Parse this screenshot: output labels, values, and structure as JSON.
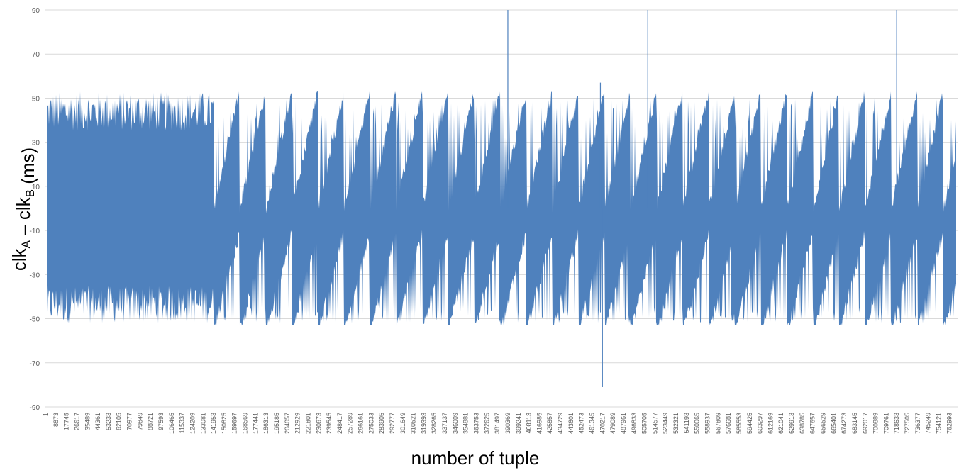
{
  "chart_data": {
    "type": "area",
    "title": "",
    "ylabel": {
      "parts": [
        {
          "text": "clk",
          "sub": false
        },
        {
          "text": "A",
          "sub": true
        },
        {
          "text": " – clk",
          "sub": false
        },
        {
          "text": "B",
          "sub": true
        },
        {
          "text": " (ms)",
          "sub": false
        }
      ]
    },
    "xlabel": "number of tuple",
    "ylim": [
      -90,
      90
    ],
    "yticks": [
      -90,
      -70,
      -50,
      -30,
      -10,
      10,
      30,
      50,
      70,
      90
    ],
    "ytick_labels": [
      "-90",
      "-70",
      "-50",
      "-30",
      "-10",
      "10",
      "30",
      "50",
      "70",
      "90"
    ],
    "xlim": [
      1,
      770000
    ],
    "xtick_labels": [
      "1",
      "8873",
      "17745",
      "26617",
      "35489",
      "44361",
      "53233",
      "62105",
      "70977",
      "79849",
      "88721",
      "97593",
      "106465",
      "115337",
      "124209",
      "133081",
      "141953",
      "150825",
      "159697",
      "168569",
      "177441",
      "186313",
      "195185",
      "204057",
      "212929",
      "221801",
      "230673",
      "239545",
      "248417",
      "257289",
      "266161",
      "275033",
      "283905",
      "292777",
      "301649",
      "310521",
      "319393",
      "328265",
      "337137",
      "346009",
      "354881",
      "363753",
      "372625",
      "381497",
      "390369",
      "399241",
      "408113",
      "416985",
      "425857",
      "434729",
      "443601",
      "452473",
      "461345",
      "470217",
      "479089",
      "487961",
      "496833",
      "505705",
      "514577",
      "523449",
      "532321",
      "541193",
      "550065",
      "558937",
      "567809",
      "576681",
      "585553",
      "594425",
      "603297",
      "612169",
      "621041",
      "629913",
      "638785",
      "647657",
      "656529",
      "665401",
      "674273",
      "683145",
      "692017",
      "700889",
      "709761",
      "718633",
      "727505",
      "736377",
      "745249",
      "754121",
      "762993"
    ],
    "gridlines": "horizontal",
    "legend": "none",
    "series": [
      {
        "color": "#4f81bd",
        "regime_1": {
          "x_range": [
            1,
            141953
          ],
          "upper_approx": [
            35,
            53
          ],
          "lower_approx": [
            -52,
            -35
          ]
        },
        "regime_2": {
          "x_range": [
            141953,
            770000
          ],
          "sawtooth_upper_peaks": 53,
          "sawtooth_lower_troughs": -53,
          "sawtooth_period_approx": 22000
        },
        "spikes": [
          {
            "x": 390369,
            "y": 90
          },
          {
            "x": 508500,
            "y": 90
          },
          {
            "x": 718600,
            "y": 90
          },
          {
            "x": 470217,
            "y": -81
          },
          {
            "x": 468500,
            "y": 57
          }
        ]
      }
    ]
  }
}
